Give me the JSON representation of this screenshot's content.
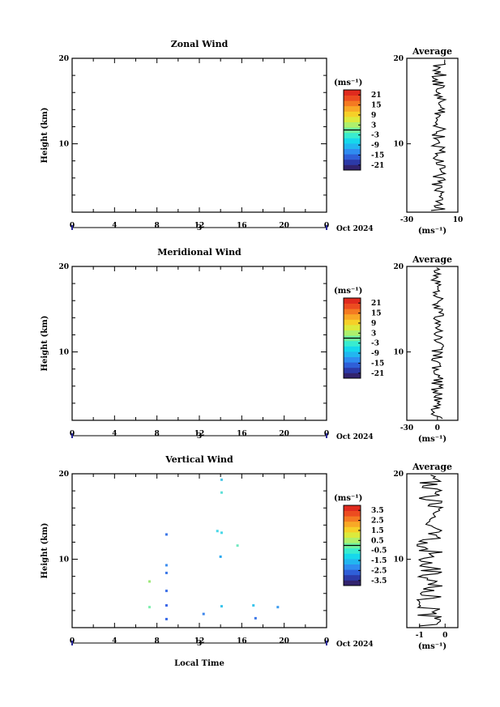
{
  "panels": [
    {
      "title": "Zonal Wind",
      "ylabel": "Height (km)",
      "unit": "(ms⁻¹)",
      "ylim": [
        2,
        20
      ],
      "yticks": [
        10,
        20
      ],
      "xlim": [
        0,
        24
      ],
      "xticks": [
        "0",
        "4",
        "8",
        "12",
        "16",
        "20",
        "0"
      ],
      "date_day": "3",
      "date_month": "Oct 2024",
      "colorbar_ticks": [
        "21",
        "15",
        "9",
        "3",
        "-3",
        "-9",
        "-15",
        "-21"
      ],
      "colorbar_range": [
        -24,
        24
      ],
      "avg_title": "Average",
      "avg_xlim": [
        -30,
        10
      ],
      "avg_xticks": [
        "-30",
        "10"
      ],
      "avg_yticks": [
        "10",
        "20"
      ],
      "avg_xlabel": "(ms⁻¹)",
      "heat_cells": []
    },
    {
      "title": "Meridional Wind",
      "ylabel": "Height (km)",
      "unit": "(ms⁻¹)",
      "ylim": [
        2,
        20
      ],
      "yticks": [
        10,
        20
      ],
      "xlim": [
        0,
        24
      ],
      "xticks": [
        "0",
        "4",
        "8",
        "12",
        "16",
        "20",
        "0"
      ],
      "date_day": "3",
      "date_month": "Oct 2024",
      "colorbar_ticks": [
        "21",
        "15",
        "9",
        "3",
        "-3",
        "-9",
        "-15",
        "-21"
      ],
      "colorbar_range": [
        -24,
        24
      ],
      "avg_title": "Average",
      "avg_xlim": [
        -30,
        20
      ],
      "avg_xticks": [
        "-30",
        "0"
      ],
      "avg_yticks": [
        "10",
        "20"
      ],
      "avg_xlabel": "(ms⁻¹)",
      "heat_cells": []
    },
    {
      "title": "Vertical Wind",
      "ylabel": "Height (km)",
      "xlabel": "Local Time",
      "unit": "(ms⁻¹)",
      "ylim": [
        2,
        20
      ],
      "yticks": [
        10,
        20
      ],
      "xlim": [
        0,
        24
      ],
      "xticks": [
        "0",
        "4",
        "8",
        "12",
        "16",
        "20",
        "0"
      ],
      "date_day": "3",
      "date_month": "Oct 2024",
      "colorbar_ticks": [
        "3.5",
        "2.5",
        "1.5",
        "0.5",
        "-0.5",
        "-1.5",
        "-2.5",
        "-3.5"
      ],
      "colorbar_range": [
        -4,
        4
      ],
      "avg_title": "Average",
      "avg_xlim": [
        -1.5,
        0.5
      ],
      "avg_xticks": [
        "-1",
        "0"
      ],
      "avg_yticks": [
        "10",
        "20"
      ],
      "avg_xlabel": "(ms⁻¹)",
      "heat_cells": [
        {
          "t": 14.1,
          "h": 19.3,
          "v": -0.6,
          "c": "#4cc8e8"
        },
        {
          "t": 14.1,
          "h": 17.8,
          "v": -0.4,
          "c": "#5fe0d8"
        },
        {
          "t": 8.9,
          "h": 12.9,
          "v": -2.3,
          "c": "#3c78e8"
        },
        {
          "t": 13.7,
          "h": 13.3,
          "v": -0.5,
          "c": "#48d8e8"
        },
        {
          "t": 14.1,
          "h": 13.1,
          "v": -0.5,
          "c": "#48d8e8"
        },
        {
          "t": 15.6,
          "h": 11.6,
          "v": 0.4,
          "c": "#70e8c0"
        },
        {
          "t": 14.0,
          "h": 10.3,
          "v": -1.0,
          "c": "#2aa8f0"
        },
        {
          "t": 8.9,
          "h": 9.3,
          "v": -1.6,
          "c": "#3c8ef0"
        },
        {
          "t": 8.9,
          "h": 8.4,
          "v": -2.0,
          "c": "#3c78e8"
        },
        {
          "t": 7.3,
          "h": 7.4,
          "v": 1.4,
          "c": "#9ee87a"
        },
        {
          "t": 8.9,
          "h": 6.3,
          "v": -2.2,
          "c": "#3c70e8"
        },
        {
          "t": 8.9,
          "h": 4.6,
          "v": -2.4,
          "c": "#3a66e8"
        },
        {
          "t": 7.3,
          "h": 4.4,
          "v": 0.8,
          "c": "#80f0b0"
        },
        {
          "t": 14.1,
          "h": 4.5,
          "v": -0.7,
          "c": "#38c4ec"
        },
        {
          "t": 17.1,
          "h": 4.6,
          "v": -0.7,
          "c": "#38c4ec"
        },
        {
          "t": 19.4,
          "h": 4.4,
          "v": -1.4,
          "c": "#3c9cf0"
        },
        {
          "t": 12.4,
          "h": 3.6,
          "v": -1.8,
          "c": "#3c86ec"
        },
        {
          "t": 8.9,
          "h": 3.0,
          "v": -2.3,
          "c": "#3a6ce8"
        },
        {
          "t": 17.3,
          "h": 3.1,
          "v": -2.0,
          "c": "#3c78e8"
        }
      ]
    }
  ],
  "chart_data": [
    {
      "type": "heatmap",
      "title": "Zonal Wind",
      "xlabel": "",
      "ylabel": "Height (km)",
      "xlim": [
        0,
        24
      ],
      "ylim": [
        2,
        20
      ],
      "note_values": "no data rendered"
    },
    {
      "type": "heatmap",
      "title": "Meridional Wind",
      "xlabel": "",
      "ylabel": "Height (km)",
      "xlim": [
        0,
        24
      ],
      "ylim": [
        2,
        20
      ],
      "note_values": "no data rendered"
    },
    {
      "type": "heatmap",
      "title": "Vertical Wind",
      "xlabel": "Local Time",
      "ylabel": "Height (km)",
      "xlim": [
        0,
        24
      ],
      "ylim": [
        2,
        20
      ]
    }
  ],
  "colormap": [
    "#32236e",
    "#2c3aa8",
    "#2f5fd8",
    "#2f8cf0",
    "#22b6f0",
    "#16d8ec",
    "#38ecd0",
    "#70f2a0",
    "#aef06c",
    "#dcea3c",
    "#f6d028",
    "#f8a826",
    "#f47a22",
    "#ec4c20",
    "#e02a1e"
  ]
}
